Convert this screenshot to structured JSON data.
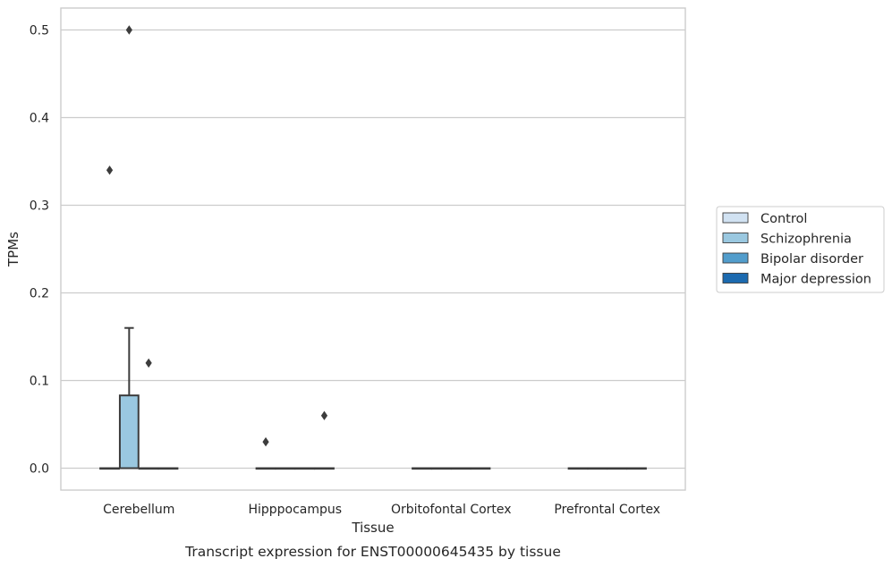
{
  "chart_data": {
    "type": "box",
    "caption": "Transcript expression for ENST00000645435 by tissue",
    "xlabel": "Tissue",
    "ylabel": "TPMs",
    "ylim": [
      -0.025,
      0.525
    ],
    "yticks": [
      0.0,
      0.1,
      0.2,
      0.3,
      0.4,
      0.5
    ],
    "ytick_labels": [
      "0.0",
      "0.1",
      "0.2",
      "0.3",
      "0.4",
      "0.5"
    ],
    "categories": [
      "Cerebellum",
      "Hipppocampus",
      "Orbitofontal Cortex",
      "Prefrontal Cortex"
    ],
    "grid": "horizontal",
    "legend_position": "right",
    "series": [
      {
        "name": "Control",
        "color": "#d1e2f2",
        "boxes": [
          {
            "q1": 0,
            "median": 0,
            "q3": 0,
            "whisker_low": 0,
            "whisker_high": 0,
            "outliers": []
          },
          {
            "q1": 0,
            "median": 0,
            "q3": 0,
            "whisker_low": 0,
            "whisker_high": 0,
            "outliers": []
          },
          {
            "q1": 0,
            "median": 0,
            "q3": 0,
            "whisker_low": 0,
            "whisker_high": 0,
            "outliers": []
          },
          {
            "q1": 0,
            "median": 0,
            "q3": 0,
            "whisker_low": 0,
            "whisker_high": 0,
            "outliers": []
          }
        ]
      },
      {
        "name": "Schizophrenia",
        "color": "#9ac8e0",
        "boxes": [
          {
            "q1": 0,
            "median": 0,
            "q3": 0.083,
            "whisker_low": 0,
            "whisker_high": 0.16,
            "outliers": [
              0.5
            ]
          },
          {
            "q1": 0,
            "median": 0,
            "q3": 0,
            "whisker_low": 0,
            "whisker_high": 0,
            "outliers": []
          },
          {
            "q1": 0,
            "median": 0,
            "q3": 0,
            "whisker_low": 0,
            "whisker_high": 0,
            "outliers": []
          },
          {
            "q1": 0,
            "median": 0,
            "q3": 0,
            "whisker_low": 0,
            "whisker_high": 0,
            "outliers": []
          }
        ]
      },
      {
        "name": "Bipolar disorder",
        "color": "#529dcc",
        "boxes": [
          {
            "q1": 0,
            "median": 0,
            "q3": 0,
            "whisker_low": 0,
            "whisker_high": 0,
            "outliers": [
              0.12
            ]
          },
          {
            "q1": 0,
            "median": 0,
            "q3": 0,
            "whisker_low": 0,
            "whisker_high": 0,
            "outliers": []
          },
          {
            "q1": 0,
            "median": 0,
            "q3": 0,
            "whisker_low": 0,
            "whisker_high": 0,
            "outliers": []
          },
          {
            "q1": 0,
            "median": 0,
            "q3": 0,
            "whisker_low": 0,
            "whisker_high": 0,
            "outliers": []
          }
        ]
      },
      {
        "name": "Major depression",
        "color": "#1c6aaf",
        "boxes": [
          {
            "q1": 0,
            "median": 0,
            "q3": 0,
            "whisker_low": 0,
            "whisker_high": 0,
            "outliers": []
          },
          {
            "q1": 0,
            "median": 0,
            "q3": 0,
            "whisker_low": 0,
            "whisker_high": 0,
            "outliers": []
          },
          {
            "q1": 0,
            "median": 0,
            "q3": 0,
            "whisker_low": 0,
            "whisker_high": 0,
            "outliers": []
          },
          {
            "q1": 0,
            "median": 0,
            "q3": 0,
            "whisker_low": 0,
            "whisker_high": 0,
            "outliers": []
          }
        ]
      }
    ],
    "extra_outliers": [
      {
        "category": "Cerebellum",
        "series": "Control",
        "value": 0.34
      },
      {
        "category": "Hipppocampus",
        "series": "Control",
        "value": 0.03
      },
      {
        "category": "Hipppocampus",
        "series": "Major depression",
        "value": 0.06
      }
    ]
  }
}
